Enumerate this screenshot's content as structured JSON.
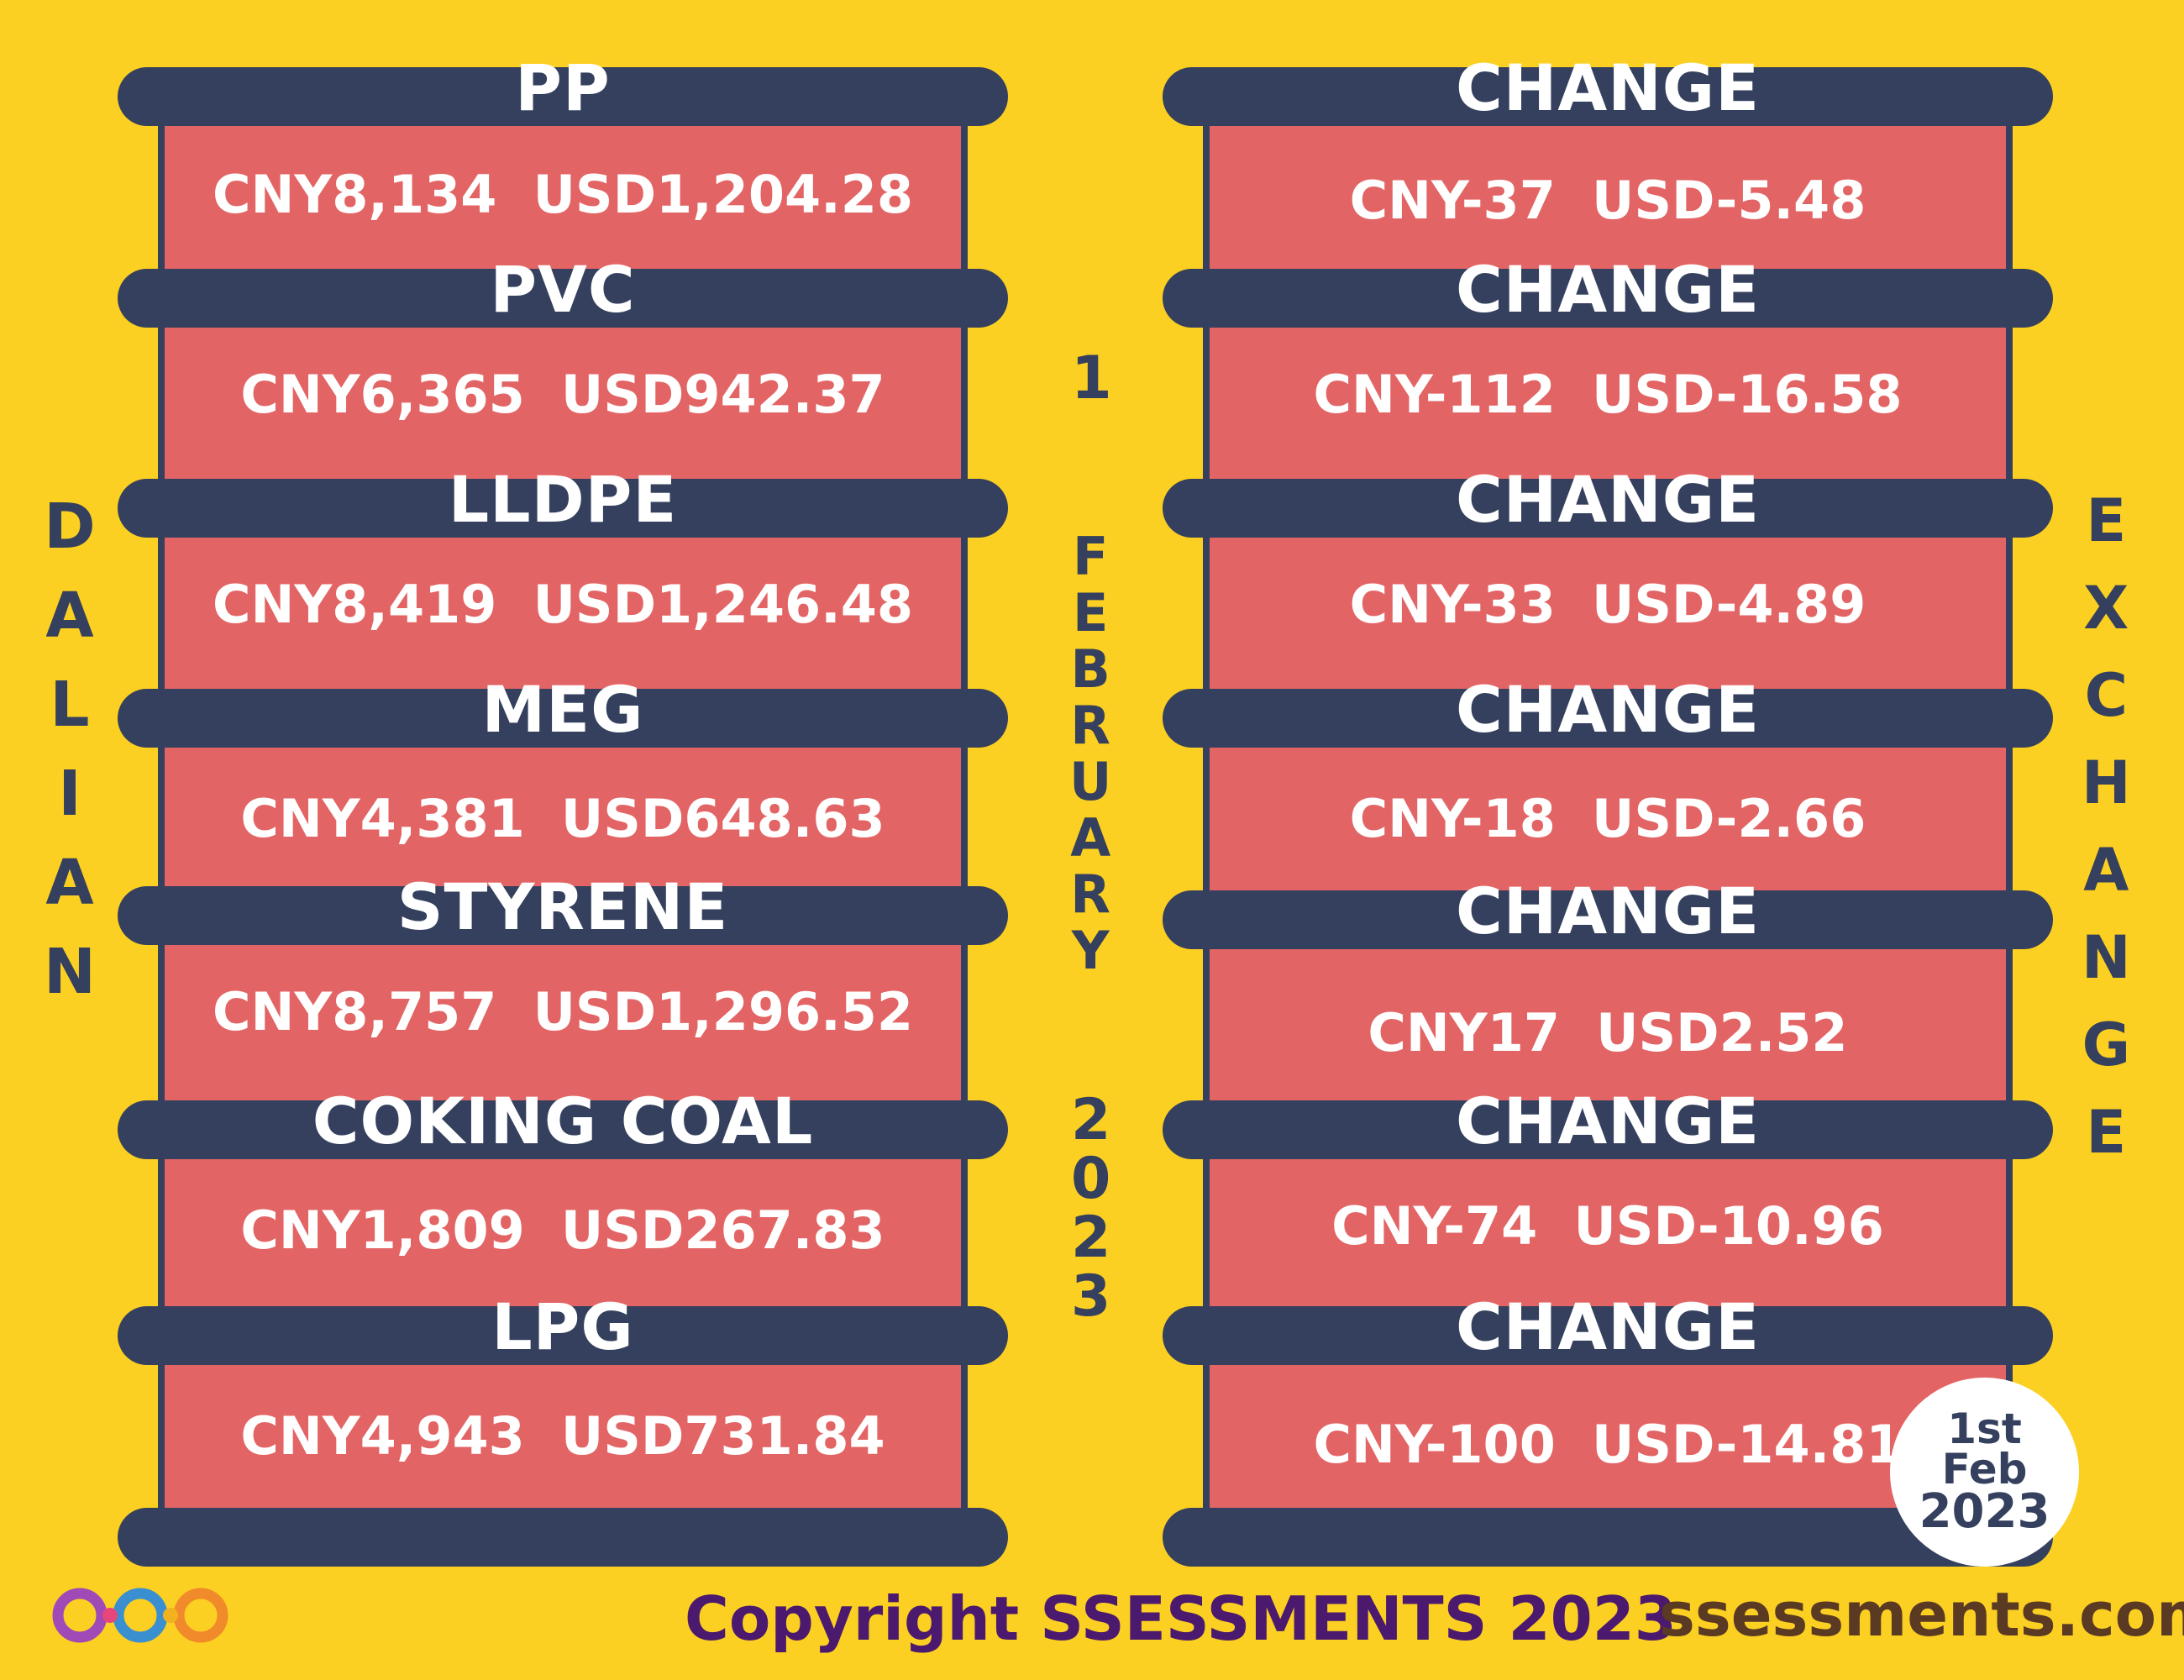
{
  "left_label": [
    "D",
    "A",
    "L",
    "I",
    "A",
    "N"
  ],
  "right_label": [
    "E",
    "X",
    "C",
    "H",
    "A",
    "N",
    "G",
    "E"
  ],
  "date_vertical": {
    "day": "1",
    "month": [
      "F",
      "E",
      "B",
      "R",
      "U",
      "A",
      "R",
      "Y"
    ],
    "year": [
      "2",
      "0",
      "2",
      "3"
    ]
  },
  "products": [
    {
      "name": "PP",
      "value": "CNY8,134  USD1,204.28"
    },
    {
      "name": "PVC",
      "value": "CNY6,365  USD942.37"
    },
    {
      "name": "LLDPE",
      "value": "CNY8,419  USD1,246.48"
    },
    {
      "name": "MEG",
      "value": "CNY4,381  USD648.63"
    },
    {
      "name": "STYRENE",
      "value": "CNY8,757  USD1,296.52"
    },
    {
      "name": "COKING COAL",
      "value": "CNY1,809  USD267.83"
    },
    {
      "name": "LPG",
      "value": "CNY4,943  USD731.84"
    }
  ],
  "changes": [
    {
      "name": "CHANGE",
      "value": "CNY-37  USD-5.48"
    },
    {
      "name": "CHANGE",
      "value": "CNY-112  USD-16.58"
    },
    {
      "name": "CHANGE",
      "value": "CNY-33  USD-4.89"
    },
    {
      "name": "CHANGE",
      "value": "CNY-18  USD-2.66"
    },
    {
      "name": "CHANGE",
      "value": "CNY17  USD2.52"
    },
    {
      "name": "CHANGE",
      "value": "CNY-74  USD-10.96"
    },
    {
      "name": "CHANGE",
      "value": "CNY-100  USD-14.81"
    }
  ],
  "badge": [
    "1st",
    "Feb",
    "2023"
  ],
  "footer": {
    "copyright": "Copyright SSESSMENTS 2023",
    "website": "ssessments.com"
  },
  "colors": {
    "background": "#fcd022",
    "navy": "#34405d",
    "salmon": "#e36464",
    "copyright": "#4b1a6e",
    "website": "#5a3a22"
  }
}
